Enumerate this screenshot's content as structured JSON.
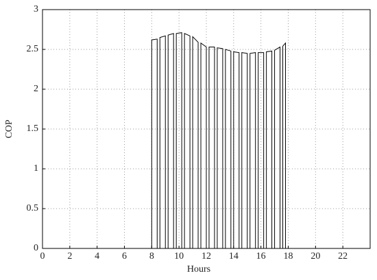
{
  "chart_data": {
    "type": "line",
    "x_label": "Hours",
    "y_label": "COP",
    "x": [
      8.0,
      8.0,
      8.4,
      8.4,
      8.6,
      8.6,
      9.0,
      9.0,
      9.2,
      9.2,
      9.6,
      9.6,
      9.8,
      9.8,
      10.2,
      10.2,
      10.4,
      10.4,
      10.8,
      10.8,
      11.0,
      11.0,
      11.4,
      11.4,
      11.6,
      11.6,
      12.0,
      12.0,
      12.2,
      12.2,
      12.6,
      12.6,
      12.8,
      12.8,
      13.2,
      13.2,
      13.4,
      13.4,
      13.8,
      13.8,
      14.0,
      14.0,
      14.4,
      14.4,
      14.6,
      14.6,
      15.0,
      15.0,
      15.2,
      15.2,
      15.6,
      15.6,
      15.8,
      15.8,
      16.2,
      16.2,
      16.4,
      16.4,
      16.8,
      16.8,
      17.0,
      17.0,
      17.4,
      17.4,
      17.6,
      17.6,
      17.8,
      17.8
    ],
    "series": [
      {
        "color": "#000000",
        "values": [
          0,
          2.62,
          2.63,
          0,
          0,
          2.65,
          2.67,
          0,
          0,
          2.68,
          2.7,
          0,
          0,
          2.7,
          2.71,
          0,
          0,
          2.7,
          2.67,
          0,
          0,
          2.66,
          2.59,
          0,
          0,
          2.58,
          2.53,
          0,
          0,
          2.53,
          2.53,
          0,
          0,
          2.52,
          2.51,
          0,
          0,
          2.5,
          2.48,
          0,
          0,
          2.47,
          2.46,
          0,
          0,
          2.46,
          2.45,
          0,
          0,
          2.45,
          2.46,
          0,
          0,
          2.46,
          2.46,
          0,
          0,
          2.47,
          2.48,
          0,
          0,
          2.49,
          2.53,
          0,
          0,
          2.54,
          2.58,
          0
        ]
      }
    ],
    "xlim": [
      0,
      24
    ],
    "xticks": [
      0,
      2,
      4,
      6,
      8,
      10,
      12,
      14,
      16,
      18,
      20,
      22
    ],
    "ylim": [
      0,
      3
    ],
    "yticks": [
      0,
      0.5,
      1,
      1.5,
      2,
      2.5,
      3
    ],
    "grid": true
  }
}
